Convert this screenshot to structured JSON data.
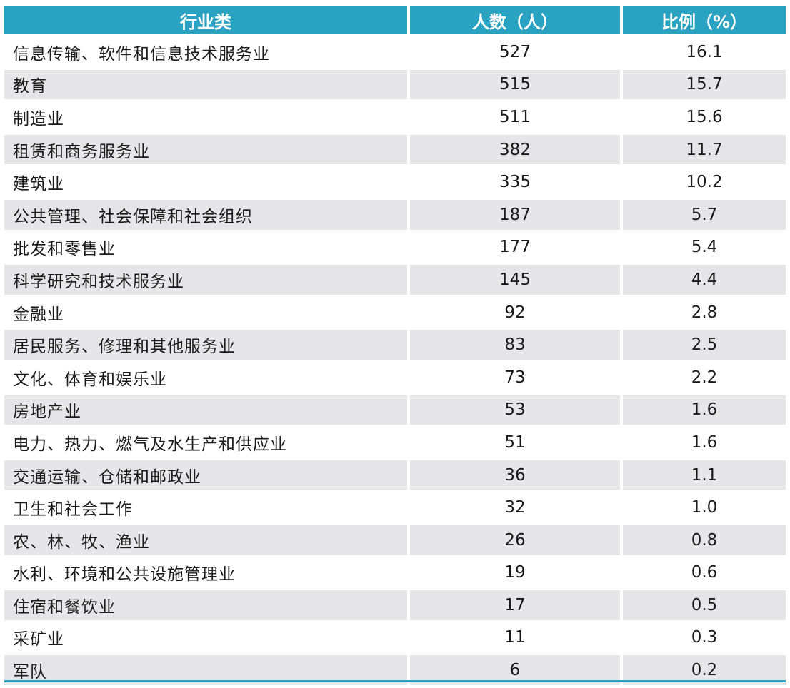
{
  "headers": {
    "industry": "行业类",
    "count": "人数（人）",
    "ratio": "比例（%）"
  },
  "colors": {
    "header_bg": "#2aa3c2",
    "header_text": "#ffffff",
    "stripe": "#e6e6e8"
  },
  "chart_data": {
    "type": "table",
    "columns": [
      "行业类",
      "人数（人）",
      "比例（%）"
    ],
    "rows": [
      {
        "industry": "信息传输、软件和信息技术服务业",
        "count": "527",
        "ratio": "16.1"
      },
      {
        "industry": "教育",
        "count": "515",
        "ratio": "15.7"
      },
      {
        "industry": "制造业",
        "count": "511",
        "ratio": "15.6"
      },
      {
        "industry": "租赁和商务服务业",
        "count": "382",
        "ratio": "11.7"
      },
      {
        "industry": "建筑业",
        "count": "335",
        "ratio": "10.2"
      },
      {
        "industry": "公共管理、社会保障和社会组织",
        "count": "187",
        "ratio": "5.7"
      },
      {
        "industry": "批发和零售业",
        "count": "177",
        "ratio": "5.4"
      },
      {
        "industry": "科学研究和技术服务业",
        "count": "145",
        "ratio": "4.4"
      },
      {
        "industry": "金融业",
        "count": "92",
        "ratio": "2.8"
      },
      {
        "industry": "居民服务、修理和其他服务业",
        "count": "83",
        "ratio": "2.5"
      },
      {
        "industry": "文化、体育和娱乐业",
        "count": "73",
        "ratio": "2.2"
      },
      {
        "industry": "房地产业",
        "count": "53",
        "ratio": "1.6"
      },
      {
        "industry": "电力、热力、燃气及水生产和供应业",
        "count": "51",
        "ratio": "1.6"
      },
      {
        "industry": "交通运输、仓储和邮政业",
        "count": "36",
        "ratio": "1.1"
      },
      {
        "industry": "卫生和社会工作",
        "count": "32",
        "ratio": "1.0"
      },
      {
        "industry": "农、林、牧、渔业",
        "count": "26",
        "ratio": "0.8"
      },
      {
        "industry": "水利、环境和公共设施管理业",
        "count": "19",
        "ratio": "0.6"
      },
      {
        "industry": "住宿和餐饮业",
        "count": "17",
        "ratio": "0.5"
      },
      {
        "industry": "采矿业",
        "count": "11",
        "ratio": "0.3"
      },
      {
        "industry": "军队",
        "count": "6",
        "ratio": "0.2"
      }
    ]
  }
}
